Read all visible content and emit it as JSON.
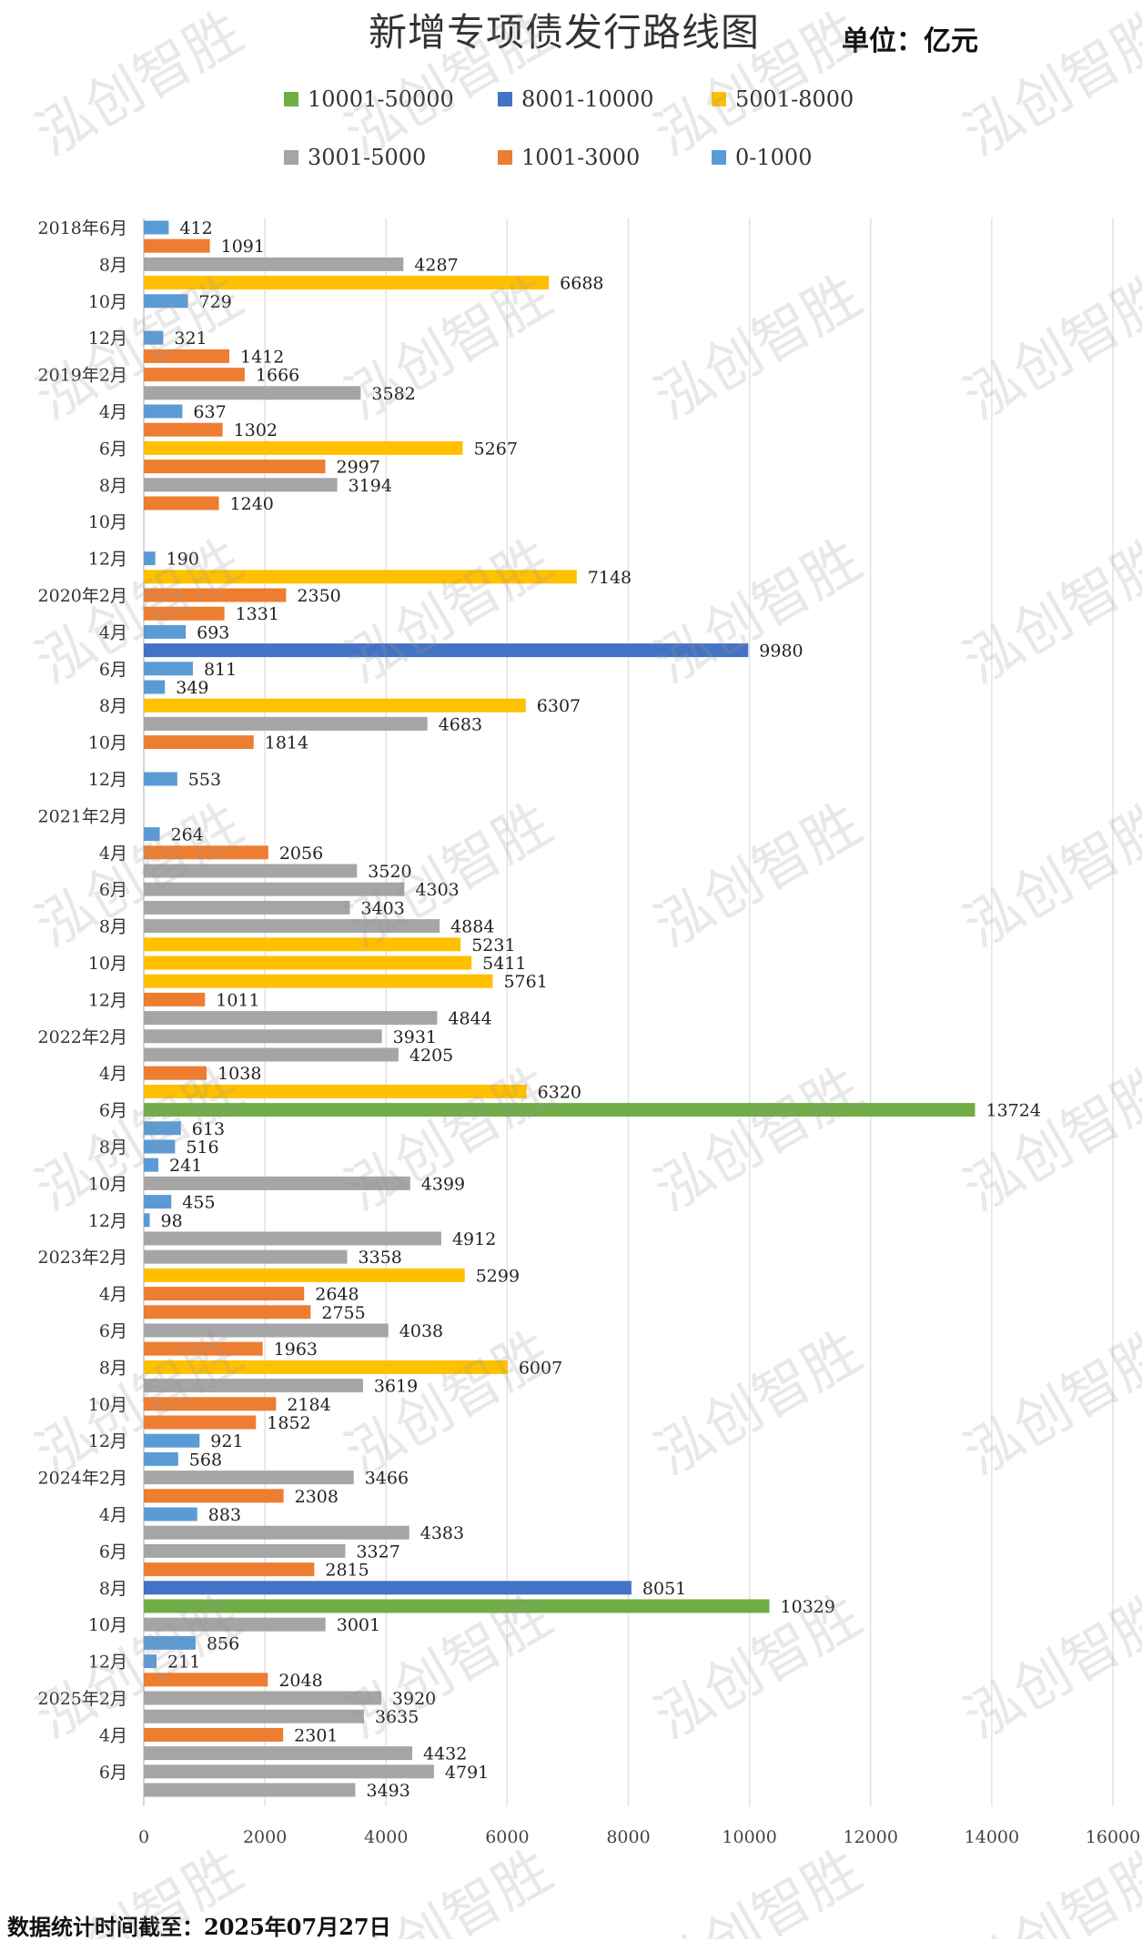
{
  "page": {
    "title": "新增专项债发行路线图",
    "unit": "单位：亿元",
    "footer": "数据统计时间截至：2025年07月27日",
    "watermark": "泓创智胜"
  },
  "chart_data": {
    "type": "bar",
    "orientation": "horizontal",
    "title": "新增专项债发行路线图",
    "unit": "单位：亿元",
    "xlim": [
      0,
      16000
    ],
    "x_ticks": [
      0,
      2000,
      4000,
      6000,
      8000,
      10000,
      12000,
      14000,
      16000
    ],
    "grid": "vertical",
    "legend_position": "top",
    "legend": [
      {
        "name": "10001-50000",
        "color": "#70AD47"
      },
      {
        "name": "8001-10000",
        "color": "#4472C4"
      },
      {
        "name": "5001-8000",
        "color": "#FFC000"
      },
      {
        "name": "3001-5000",
        "color": "#A5A5A5"
      },
      {
        "name": "1001-3000",
        "color": "#ED7D31"
      },
      {
        "name": "0-1000",
        "color": "#5B9BD5"
      }
    ],
    "category_labels": [
      {
        "label": "2018年6月",
        "index": 0
      },
      {
        "label": "8月",
        "index": 2
      },
      {
        "label": "10月",
        "index": 4
      },
      {
        "label": "12月",
        "index": 6
      },
      {
        "label": "2019年2月",
        "index": 8
      },
      {
        "label": "4月",
        "index": 10
      },
      {
        "label": "6月",
        "index": 12
      },
      {
        "label": "8月",
        "index": 14
      },
      {
        "label": "10月",
        "index": 16
      },
      {
        "label": "12月",
        "index": 18
      },
      {
        "label": "2020年2月",
        "index": 20
      },
      {
        "label": "4月",
        "index": 22
      },
      {
        "label": "6月",
        "index": 24
      },
      {
        "label": "8月",
        "index": 26
      },
      {
        "label": "10月",
        "index": 28
      },
      {
        "label": "12月",
        "index": 30
      },
      {
        "label": "2021年2月",
        "index": 32
      },
      {
        "label": "4月",
        "index": 34
      },
      {
        "label": "6月",
        "index": 36
      },
      {
        "label": "8月",
        "index": 38
      },
      {
        "label": "10月",
        "index": 40
      },
      {
        "label": "12月",
        "index": 42
      },
      {
        "label": "2022年2月",
        "index": 44
      },
      {
        "label": "4月",
        "index": 46
      },
      {
        "label": "6月",
        "index": 48
      },
      {
        "label": "8月",
        "index": 50
      },
      {
        "label": "10月",
        "index": 52
      },
      {
        "label": "12月",
        "index": 54
      },
      {
        "label": "2023年2月",
        "index": 56
      },
      {
        "label": "4月",
        "index": 58
      },
      {
        "label": "6月",
        "index": 60
      },
      {
        "label": "8月",
        "index": 62
      },
      {
        "label": "10月",
        "index": 64
      },
      {
        "label": "12月",
        "index": 66
      },
      {
        "label": "2024年2月",
        "index": 68
      },
      {
        "label": "4月",
        "index": 70
      },
      {
        "label": "6月",
        "index": 72
      },
      {
        "label": "8月",
        "index": 74
      },
      {
        "label": "10月",
        "index": 76
      },
      {
        "label": "12月",
        "index": 78
      },
      {
        "label": "2025年2月",
        "index": 80
      },
      {
        "label": "4月",
        "index": 82
      },
      {
        "label": "6月",
        "index": 84
      }
    ],
    "values": [
      412,
      1091,
      4287,
      6688,
      729,
      0,
      321,
      1412,
      1666,
      3582,
      637,
      1302,
      5267,
      2997,
      3194,
      1240,
      0,
      0,
      190,
      7148,
      2350,
      1331,
      693,
      9980,
      811,
      349,
      6307,
      4683,
      1814,
      0,
      553,
      0,
      0,
      264,
      2056,
      3520,
      4303,
      3403,
      4884,
      5231,
      5411,
      5761,
      1011,
      4844,
      3931,
      4205,
      1038,
      6320,
      13724,
      613,
      516,
      241,
      4399,
      455,
      98,
      4912,
      3358,
      5299,
      2648,
      2755,
      4038,
      1963,
      6007,
      3619,
      2184,
      1852,
      921,
      568,
      3466,
      2308,
      883,
      4383,
      3327,
      2815,
      8051,
      10329,
      3001,
      856,
      211,
      2048,
      3920,
      3635,
      2301,
      4432,
      4791,
      3493
    ]
  }
}
